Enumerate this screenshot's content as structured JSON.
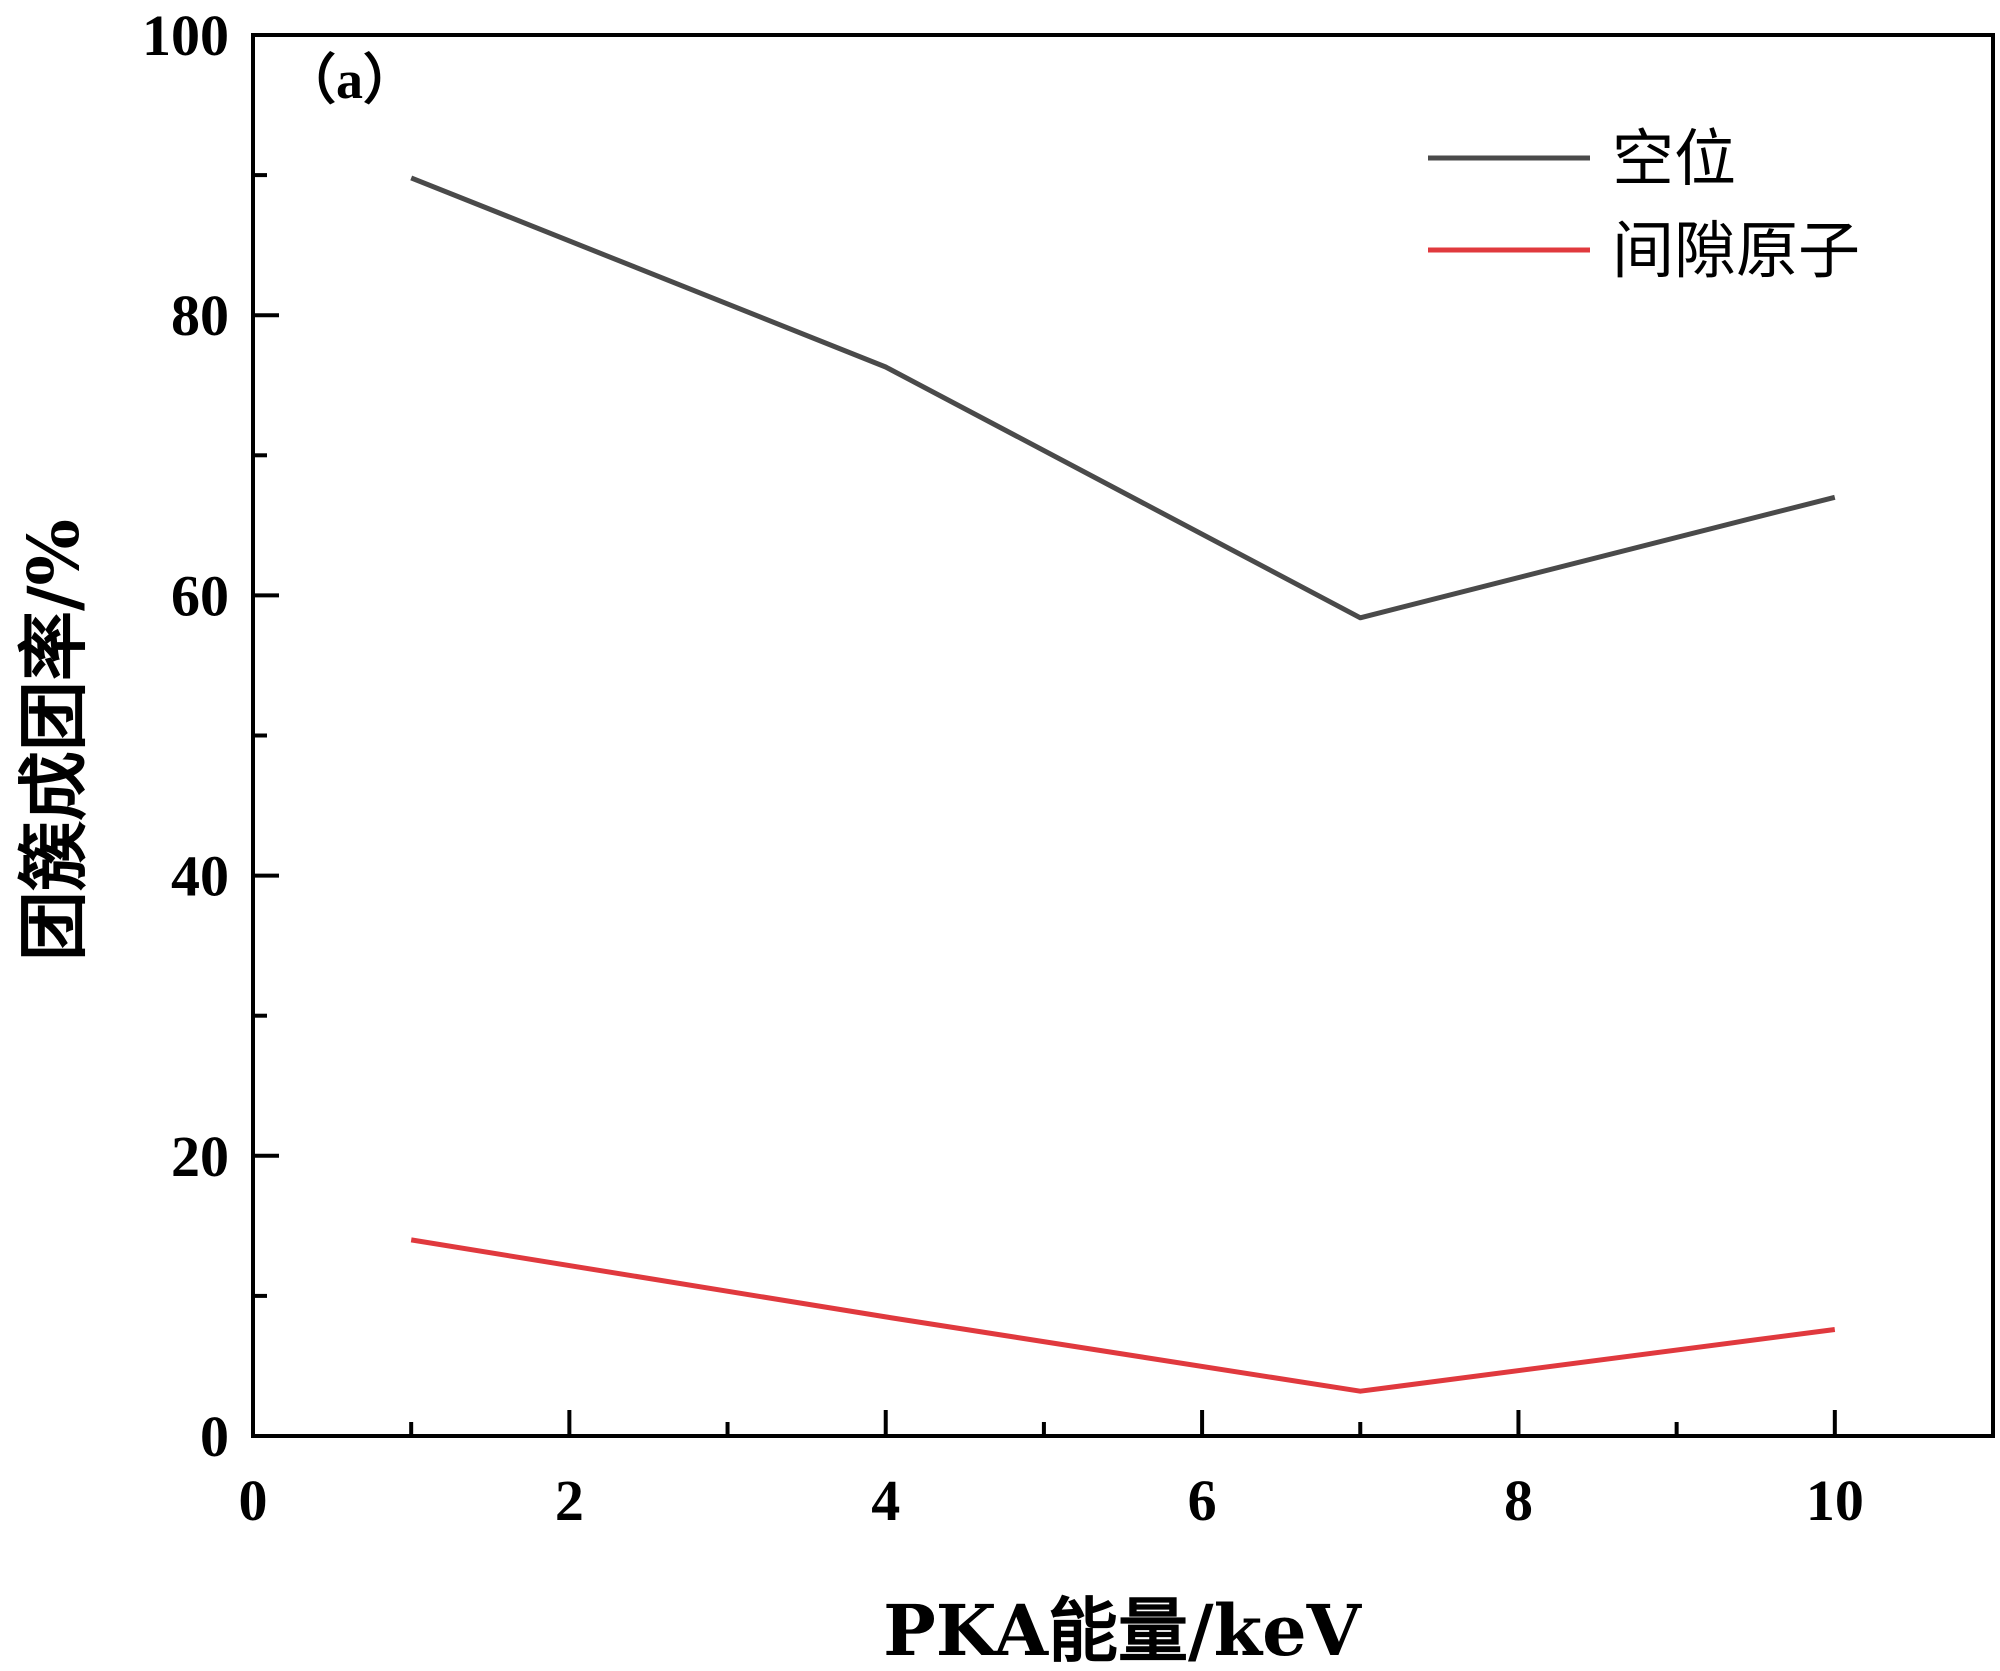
{
  "chart_data": {
    "type": "line",
    "panel_label": "（a）",
    "xlabel": "PKA能量/keV",
    "ylabel": "团簇成团率/%",
    "xlim": [
      0,
      11
    ],
    "ylim": [
      0,
      100
    ],
    "x_major_ticks": [
      0,
      2,
      4,
      6,
      8,
      10
    ],
    "x_minor_ticks": [
      1,
      3,
      5,
      7,
      9,
      11
    ],
    "y_major_ticks": [
      0,
      20,
      40,
      60,
      80,
      100
    ],
    "y_minor_ticks": [
      10,
      30,
      50,
      70,
      90
    ],
    "grid": false,
    "legend_position": "top-right",
    "x": [
      1,
      4,
      7,
      10
    ],
    "series": [
      {
        "name": "空位",
        "values": [
          89.8,
          76.3,
          58.4,
          67.0
        ],
        "color": "#4a4a4a"
      },
      {
        "name": "间隙原子",
        "values": [
          14.0,
          8.5,
          3.2,
          7.6
        ],
        "color": "#e0393e"
      }
    ]
  }
}
